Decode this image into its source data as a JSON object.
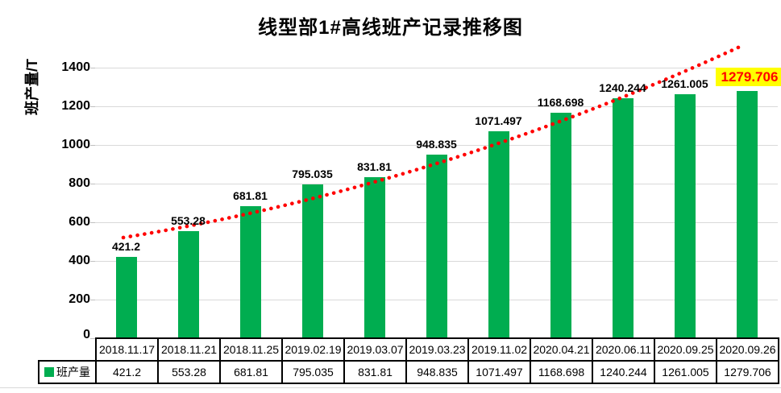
{
  "title": "线型部1#高线班产记录推移图",
  "y_axis": {
    "label": "班产量/T",
    "ticks": [
      0,
      200,
      400,
      600,
      800,
      1000,
      1200,
      1400
    ]
  },
  "legend": {
    "series_label": "班产量"
  },
  "colors": {
    "bar": "#00AD50",
    "trendline": "#FF0000",
    "gridline": "#D9D9D9",
    "highlight_background": "#FFFF00",
    "highlight_text": "#FF0000",
    "text": "#000000"
  },
  "chart_data": {
    "type": "bar",
    "title": "线型部1#高线班产记录推移图",
    "xlabel": "",
    "ylabel": "班产量/T",
    "categories": [
      "2018.11.17",
      "2018.11.21",
      "2018.11.25",
      "2019.02.19",
      "2019.03.07",
      "2019.03.23",
      "2019.11.02",
      "2020.04.21",
      "2020.06.11",
      "2020.09.25",
      "2020.09.26"
    ],
    "series": [
      {
        "name": "班产量",
        "values": [
          421.2,
          553.28,
          681.81,
          795.035,
          831.81,
          948.835,
          1071.497,
          1168.698,
          1240.244,
          1261.005,
          1279.706
        ]
      }
    ],
    "data_labels": [
      "421.2",
      "553.28",
      "681.81",
      "795.035",
      "831.81",
      "948.835",
      "1071.497",
      "1168.698",
      "1240.244",
      "1261.005",
      "1279.706"
    ],
    "ylim": [
      0,
      1500
    ],
    "ytick_interval": 200,
    "grid": true,
    "legend_position": "bottom-left",
    "data_table_shown": true,
    "trendline": {
      "style": "dotted",
      "color": "#FF0000",
      "shape": "rising curve from first to last bar"
    },
    "highlight": {
      "index": 10,
      "label": "1279.706",
      "background": "#FFFF00",
      "text_color": "#FF0000"
    }
  }
}
